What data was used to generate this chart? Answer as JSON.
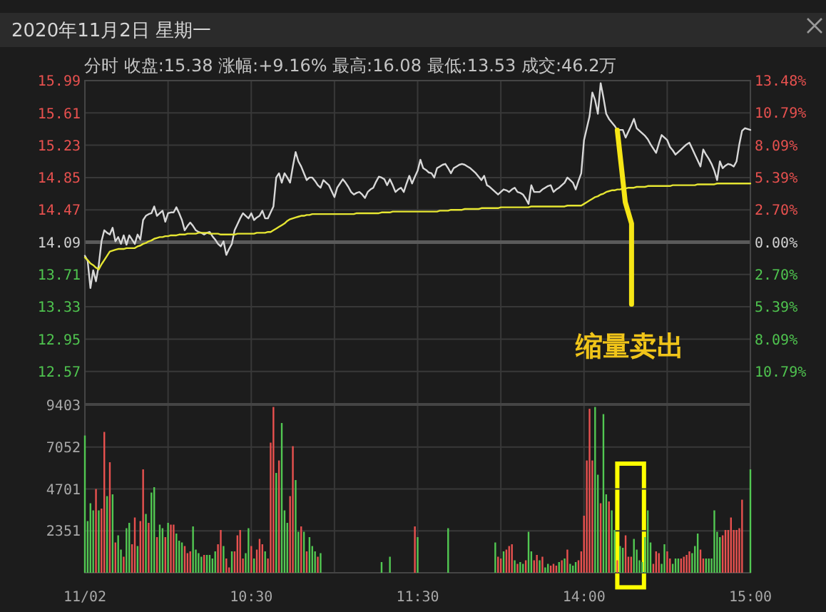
{
  "chart_data": [
    {
      "type": "line",
      "title": "2020年11月2日 星期一",
      "subtitle": "分时 收盘:15.38 涨幅:+9.16% 最高:16.08 最低:13.53 成交:46.2万",
      "categories": [
        null,
        null,
        null,
        null,
        null,
        null,
        null,
        null,
        null,
        null,
        null,
        null,
        null,
        null,
        null,
        null,
        null,
        null,
        null,
        null,
        null,
        null,
        null,
        null,
        null,
        null,
        null,
        null,
        null,
        null,
        null,
        null,
        null,
        null,
        null,
        null,
        null,
        null,
        null,
        null,
        null,
        null,
        null,
        null,
        null,
        null,
        null,
        null,
        null,
        null,
        null,
        null,
        null,
        null,
        null,
        null,
        null,
        null,
        null,
        null,
        null,
        null,
        null,
        null,
        null,
        null,
        null,
        null,
        null,
        null,
        null,
        null,
        null,
        null,
        null,
        null,
        null,
        null,
        null,
        null,
        null,
        null,
        null,
        null,
        null,
        null,
        null,
        null,
        null,
        null,
        null,
        null,
        null,
        null,
        null,
        null,
        null,
        null,
        null,
        null,
        null,
        null,
        null,
        null,
        null,
        null,
        null,
        null,
        null,
        null,
        null,
        null,
        null,
        null,
        null,
        null,
        null,
        null,
        null,
        null,
        null,
        null,
        null,
        null,
        null,
        null,
        null,
        null,
        null,
        null,
        null,
        null,
        null,
        null,
        null,
        null,
        null,
        null,
        null,
        null,
        null,
        null,
        null,
        null,
        null,
        null,
        null,
        null,
        null,
        null,
        null,
        null,
        null,
        null,
        null,
        null,
        null,
        null,
        null,
        null,
        null,
        null,
        null,
        null,
        null,
        null,
        null,
        null,
        null,
        null,
        null,
        null,
        null,
        null,
        null,
        null,
        null,
        null,
        null,
        null,
        null,
        null,
        null,
        null,
        null,
        null,
        null,
        null,
        null,
        null,
        null,
        null,
        null,
        null,
        null,
        null,
        null,
        null,
        null,
        null,
        null,
        null,
        null,
        null,
        null,
        null,
        null,
        null,
        null,
        null,
        null,
        null,
        null,
        null,
        null,
        null,
        null,
        null,
        null,
        null,
        null,
        null,
        null,
        null,
        null,
        null,
        null,
        null,
        null,
        null,
        null,
        null,
        null,
        null,
        null,
        null,
        null,
        null,
        null,
        null,
        null
      ],
      "ylim": [
        12.19,
        15.99
      ],
      "yticks": [
        15.99,
        15.61,
        15.23,
        14.85,
        14.47,
        14.09,
        13.71,
        13.33,
        12.95,
        12.57
      ],
      "y2lim": [
        -13.48,
        13.48
      ],
      "y2ticks": [
        {
          "value": 13.48,
          "label": "13.48%"
        },
        {
          "value": 10.79,
          "label": "10.79%"
        },
        {
          "value": 8.09,
          "label": "8.09%"
        },
        {
          "value": 5.39,
          "label": "5.39%"
        },
        {
          "value": 2.7,
          "label": "2.70%"
        },
        {
          "value": 0,
          "label": "0.00%"
        },
        {
          "value": -2.7,
          "label": "2.70%"
        },
        {
          "value": -5.39,
          "label": "5.39%"
        },
        {
          "value": -8.09,
          "label": "8.09%"
        },
        {
          "value": -10.79,
          "label": "10.79%"
        }
      ],
      "grid": true,
      "ref_lines": [
        {
          "axis": "y",
          "value": 14.09,
          "color": "#5a5a5a"
        }
      ],
      "annotations": [
        "缩量卖出"
      ],
      "series": [
        {
          "color": "#d8d8d8",
          "values": [
            13.93,
            13.87,
            13.55,
            13.76,
            13.63,
            13.82,
            14.1,
            14.23,
            14.2,
            14.18,
            14.26,
            14.1,
            14.15,
            14.07,
            14.17,
            14.06,
            14.17,
            14.12,
            14.07,
            14.18,
            14.12,
            14.35,
            14.4,
            14.42,
            14.43,
            14.51,
            14.4,
            14.43,
            14.46,
            14.33,
            14.43,
            14.44,
            14.44,
            14.5,
            14.43,
            14.35,
            14.23,
            14.28,
            14.32,
            14.28,
            14.23,
            14.21,
            14.2,
            14.18,
            14.2,
            14.21,
            14.16,
            14.12,
            14.07,
            14.04,
            14.1,
            13.94,
            14.01,
            14.07,
            14.23,
            14.3,
            14.37,
            14.43,
            14.4,
            14.37,
            14.43,
            14.35,
            14.38,
            14.4,
            14.46,
            14.37,
            14.37,
            14.44,
            14.51,
            14.85,
            14.9,
            14.79,
            14.9,
            14.85,
            14.79,
            14.98,
            15.15,
            15.04,
            14.98,
            14.9,
            14.82,
            14.85,
            14.85,
            14.81,
            14.76,
            14.73,
            14.82,
            14.79,
            14.76,
            14.69,
            14.62,
            14.73,
            14.78,
            14.83,
            14.79,
            14.74,
            14.68,
            14.65,
            14.67,
            14.68,
            14.65,
            14.61,
            14.68,
            14.71,
            14.73,
            14.8,
            14.86,
            14.85,
            14.83,
            14.76,
            14.83,
            14.76,
            14.68,
            14.71,
            14.73,
            14.68,
            14.78,
            14.87,
            14.78,
            14.86,
            14.93,
            15.06,
            14.96,
            14.94,
            14.91,
            14.9,
            14.85,
            14.96,
            14.98,
            15.0,
            15.01,
            14.96,
            14.9,
            14.96,
            14.98,
            15.0,
            15.01,
            15.0,
            14.98,
            14.96,
            14.93,
            14.9,
            14.86,
            14.82,
            14.87,
            14.76,
            14.74,
            14.71,
            14.68,
            14.65,
            14.68,
            14.71,
            14.7,
            14.68,
            14.71,
            14.73,
            14.68,
            14.67,
            14.65,
            14.6,
            14.54,
            14.76,
            14.68,
            14.68,
            14.68,
            14.71,
            14.73,
            14.75,
            14.76,
            14.68,
            14.71,
            14.73,
            14.76,
            14.79,
            14.85,
            14.82,
            14.79,
            14.71,
            14.81,
            14.9,
            15.29,
            15.43,
            15.57,
            15.85,
            15.76,
            15.6,
            15.96,
            15.79,
            15.6,
            15.54,
            15.5,
            15.46,
            15.41,
            15.41,
            15.41,
            15.32,
            15.39,
            15.46,
            15.54,
            15.43,
            15.4,
            15.37,
            15.34,
            15.3,
            15.24,
            15.19,
            15.14,
            15.25,
            15.35,
            15.32,
            15.29,
            15.21,
            15.17,
            15.12,
            15.15,
            15.18,
            15.21,
            15.24,
            15.26,
            15.19,
            15.12,
            15.05,
            14.98,
            15.18,
            15.12,
            15.07,
            15.01,
            14.93,
            14.82,
            15.04,
            14.96,
            14.99,
            15.01,
            15.0,
            14.98,
            15.04,
            15.24,
            15.4,
            15.43,
            15.42,
            15.41
          ]
        },
        {
          "color": "#e6e632",
          "values": [
            13.91,
            13.88,
            13.84,
            13.82,
            13.79,
            13.77,
            13.83,
            13.88,
            13.93,
            13.98,
            13.99,
            14.0,
            14.01,
            14.01,
            14.01,
            14.02,
            14.02,
            14.02,
            14.02,
            14.04,
            14.05,
            14.07,
            14.08,
            14.1,
            14.11,
            14.13,
            14.14,
            14.15,
            14.15,
            14.16,
            14.16,
            14.17,
            14.17,
            14.17,
            14.18,
            14.18,
            14.18,
            14.19,
            14.19,
            14.19,
            14.19,
            14.2,
            14.2,
            14.2,
            14.2,
            14.19,
            14.19,
            14.19,
            14.19,
            14.18,
            14.18,
            14.18,
            14.18,
            14.18,
            14.18,
            14.19,
            14.19,
            14.19,
            14.19,
            14.19,
            14.19,
            14.19,
            14.2,
            14.2,
            14.2,
            14.2,
            14.21,
            14.21,
            14.23,
            14.25,
            14.27,
            14.29,
            14.31,
            14.34,
            14.36,
            14.37,
            14.38,
            14.39,
            14.4,
            14.4,
            14.41,
            14.41,
            14.42,
            14.42,
            14.42,
            14.42,
            14.42,
            14.42,
            14.42,
            14.42,
            14.42,
            14.42,
            14.42,
            14.42,
            14.42,
            14.42,
            14.42,
            14.42,
            14.43,
            14.43,
            14.43,
            14.43,
            14.43,
            14.43,
            14.43,
            14.43,
            14.43,
            14.44,
            14.44,
            14.44,
            14.44,
            14.45,
            14.45,
            14.45,
            14.45,
            14.45,
            14.45,
            14.45,
            14.45,
            14.45,
            14.45,
            14.45,
            14.45,
            14.45,
            14.45,
            14.45,
            14.45,
            14.45,
            14.46,
            14.46,
            14.46,
            14.46,
            14.47,
            14.47,
            14.47,
            14.47,
            14.47,
            14.48,
            14.48,
            14.48,
            14.48,
            14.48,
            14.48,
            14.49,
            14.49,
            14.49,
            14.49,
            14.49,
            14.49,
            14.49,
            14.5,
            14.5,
            14.5,
            14.5,
            14.5,
            14.5,
            14.5,
            14.5,
            14.5,
            14.5,
            14.5,
            14.51,
            14.51,
            14.51,
            14.51,
            14.51,
            14.51,
            14.51,
            14.51,
            14.51,
            14.51,
            14.51,
            14.51,
            14.51,
            14.52,
            14.52,
            14.52,
            14.52,
            14.52,
            14.52,
            14.54,
            14.56,
            14.58,
            14.6,
            14.62,
            14.63,
            14.65,
            14.66,
            14.68,
            14.69,
            14.7,
            14.7,
            14.71,
            14.71,
            14.72,
            14.72,
            14.73,
            14.73,
            14.73,
            14.74,
            14.74,
            14.74,
            14.74,
            14.75,
            14.75,
            14.75,
            14.75,
            14.75,
            14.75,
            14.75,
            14.75,
            14.75,
            14.76,
            14.76,
            14.76,
            14.76,
            14.76,
            14.76,
            14.76,
            14.76,
            14.76,
            14.77,
            14.77,
            14.77,
            14.77,
            14.77,
            14.77,
            14.77,
            14.78,
            14.78,
            14.78,
            14.78,
            14.78,
            14.78,
            14.78,
            14.78,
            14.78,
            14.78,
            14.78,
            14.78,
            14.78
          ]
        }
      ]
    },
    {
      "type": "bar",
      "categories": [
        "11/02",
        null,
        null,
        null,
        null,
        null,
        null,
        null,
        null,
        null,
        null,
        null,
        null,
        null,
        null,
        null,
        null,
        null,
        null,
        null,
        null,
        null,
        null,
        null,
        null,
        null,
        null,
        null,
        null,
        null,
        null,
        null,
        null,
        null,
        null,
        null,
        null,
        null,
        null,
        null,
        null,
        null,
        null,
        null,
        null,
        null,
        null,
        null,
        null,
        null,
        null,
        null,
        null,
        null,
        null,
        null,
        null,
        null,
        null,
        null,
        "10:30",
        null,
        null,
        null,
        null,
        null,
        null,
        null,
        null,
        null,
        null,
        null,
        null,
        null,
        null,
        null,
        null,
        null,
        null,
        null,
        null,
        null,
        null,
        null,
        null,
        null,
        null,
        null,
        null,
        null,
        null,
        null,
        null,
        null,
        null,
        null,
        null,
        null,
        null,
        null,
        null,
        null,
        null,
        null,
        null,
        null,
        null,
        null,
        null,
        null,
        null,
        null,
        null,
        null,
        null,
        null,
        null,
        null,
        null,
        null,
        "11:30",
        null,
        null,
        null,
        null,
        null,
        null,
        null,
        null,
        null,
        null,
        null,
        null,
        null,
        null,
        null,
        null,
        null,
        null,
        null,
        null,
        null,
        null,
        null,
        null,
        null,
        null,
        null,
        null,
        null,
        null,
        null,
        null,
        null,
        null,
        null,
        null,
        null,
        null,
        null,
        null,
        null,
        null,
        null,
        null,
        null,
        null,
        null,
        null,
        null,
        null,
        null,
        null,
        null,
        null,
        null,
        null,
        null,
        null,
        null,
        "14:00",
        null,
        null,
        null,
        null,
        null,
        null,
        null,
        null,
        null,
        null,
        null,
        null,
        null,
        null,
        null,
        null,
        null,
        null,
        null,
        null,
        null,
        null,
        null,
        null,
        null,
        null,
        null,
        null,
        null,
        null,
        null,
        null,
        null,
        null,
        null,
        null,
        null,
        null,
        null,
        null,
        null,
        null,
        null,
        null,
        null,
        null,
        null,
        null,
        null,
        null,
        null,
        null,
        null,
        null,
        null,
        null,
        null,
        null,
        null,
        "15:00"
      ],
      "ylim": [
        0,
        9403
      ],
      "yticks": [
        2351,
        4701,
        7052,
        9403
      ],
      "grid": true,
      "values": [
        7700,
        2900,
        3900,
        3500,
        4700,
        3500,
        3600,
        7900,
        4300,
        6200,
        4400,
        1700,
        2100,
        1300,
        900,
        2500,
        2800,
        1600,
        3100,
        1500,
        2900,
        5800,
        3300,
        2800,
        4500,
        4800,
        2000,
        2700,
        2500,
        2000,
        2800,
        2700,
        2700,
        2200,
        1800,
        1700,
        1500,
        1100,
        1200,
        2600,
        1300,
        1100,
        900,
        1000,
        1000,
        1000,
        800,
        1200,
        1600,
        2400,
        1500,
        800,
        300,
        1200,
        1200,
        2100,
        2400,
        800,
        1100,
        2500,
        1500,
        800,
        1300,
        1900,
        1600,
        1200,
        800,
        7300,
        9300,
        5600,
        6300,
        8400,
        3500,
        2800,
        4300,
        7100,
        5200,
        2300,
        2600,
        2300,
        1200,
        2000,
        1500,
        1200,
        900,
        1100,
        null,
        null,
        null,
        null,
        null,
        null,
        null,
        null,
        null,
        null,
        null,
        null,
        null,
        null,
        null,
        null,
        null,
        null,
        null,
        null,
        null,
        600,
        null,
        null,
        900,
        null,
        null,
        null,
        null,
        null,
        null,
        null,
        null,
        2600,
        2000,
        null,
        null,
        null,
        null,
        null,
        null,
        null,
        null,
        null,
        null,
        2500,
        null,
        null,
        null,
        null,
        null,
        null,
        null,
        null,
        null,
        null,
        null,
        null,
        null,
        null,
        null,
        null,
        1700,
        900,
        800,
        1200,
        1300,
        1500,
        1600,
        700,
        500,
        600,
        500,
        700,
        2300,
        1200,
        700,
        1000,
        700,
        900,
        300,
        500,
        400,
        500,
        400,
        600,
        700,
        800,
        1300,
        500,
        400,
        600,
        700,
        1200,
        3200,
        6300,
        9200,
        6300,
        9300,
        5500,
        3900,
        8900,
        4400,
        4000,
        3500,
        2400,
        700,
        1500,
        1400,
        2100,
        900,
        900,
        1900,
        1300,
        700,
        600,
        2000,
        3500,
        1700,
        500,
        1200,
        1100,
        500,
        1600,
        1200,
        800,
        500,
        800,
        800,
        800,
        900,
        1000,
        1200,
        1100,
        1500,
        2200,
        1300,
        800,
        800,
        800,
        800,
        3500,
        2300,
        2000,
        2100,
        2400,
        2400,
        3100,
        2400,
        2400,
        2500,
        4100,
        null,
        null,
        5800
      ],
      "colors": [
        "#52c852",
        "#52c852",
        "#52c852",
        "#52c852",
        "#e8514f",
        "#52c852",
        "#e8514f",
        "#e8514f",
        "#52c852",
        "#e8514f",
        "#52c852",
        "#e8514f",
        "#52c852",
        "#52c852",
        "#e8514f",
        "#52c852",
        "#52c852",
        "#e8514f",
        "#e8514f",
        "#52c852",
        "#e8514f",
        "#e8514f",
        "#52c852",
        "#e8514f",
        "#52c852",
        "#52c852",
        "#e8514f",
        "#52c852",
        "#52c852",
        "#e8514f",
        "#52c852",
        "#e8514f",
        "#e8514f",
        "#52c852",
        "#52c852",
        "#52c852",
        "#e8514f",
        "#e8514f",
        "#e8514f",
        "#52c852",
        "#52c852",
        "#52c852",
        "#52c852",
        "#e8514f",
        "#52c852",
        "#52c852",
        "#52c852",
        "#52c852",
        "#e8514f",
        "#e8514f",
        "#52c852",
        "#e8514f",
        "#e8514f",
        "#52c852",
        "#e8514f",
        "#e8514f",
        "#e8514f",
        "#e8514f",
        "#52c852",
        "#52c852",
        "#e8514f",
        "#52c852",
        "#e8514f",
        "#e8514f",
        "#e8514f",
        "#52c852",
        "#e8514f",
        "#e8514f",
        "#e8514f",
        "#52c852",
        "#e8514f",
        "#52c852",
        "#52c852",
        "#52c852",
        "#e8514f",
        "#e8514f",
        "#52c852",
        "#52c852",
        "#e8514f",
        "#52c852",
        "#e8514f",
        "#52c852",
        "#52c852",
        "#52c852",
        "#e8514f",
        "#52c852",
        null,
        null,
        null,
        null,
        null,
        null,
        null,
        null,
        null,
        null,
        null,
        null,
        null,
        null,
        null,
        null,
        null,
        null,
        null,
        null,
        null,
        "#52c852",
        null,
        null,
        "#52c852",
        null,
        null,
        null,
        null,
        null,
        null,
        null,
        null,
        "#e8514f",
        "#52c852",
        null,
        null,
        null,
        null,
        null,
        null,
        null,
        null,
        null,
        null,
        "#52c852",
        null,
        null,
        null,
        null,
        null,
        null,
        null,
        null,
        null,
        null,
        null,
        null,
        null,
        null,
        null,
        null,
        "#52c852",
        "#e8514f",
        "#e8514f",
        "#52c852",
        "#e8514f",
        "#e8514f",
        "#e8514f",
        "#52c852",
        "#e8514f",
        "#52c852",
        "#52c852",
        "#e8514f",
        "#52c852",
        "#52c852",
        "#e8514f",
        "#e8514f",
        "#52c852",
        "#e8514f",
        "#52c852",
        "#52c852",
        "#e8514f",
        "#e8514f",
        "#e8514f",
        "#52c852",
        "#e8514f",
        "#52c852",
        "#e8514f",
        "#52c852",
        "#52c852",
        "#52c852",
        "#e8514f",
        "#e8514f",
        "#e8514f",
        "#e8514f",
        "#e8514f",
        "#e8514f",
        "#52c852",
        "#52c852",
        "#e8514f",
        "#52c852",
        "#52c852",
        "#e8514f",
        "#52c852",
        "#52c852",
        "#e8514f",
        "#52c852",
        "#52c852",
        "#e8514f",
        "#e8514f",
        "#e8514f",
        "#52c852",
        "#52c852",
        "#52c852",
        "#52c852",
        "#52c852",
        "#52c852",
        "#52c852",
        "#e8514f",
        "#e8514f",
        "#e8514f",
        "#52c852",
        "#52c852",
        "#e8514f",
        "#e8514f",
        "#52c852",
        "#52c852",
        "#52c852",
        "#e8514f",
        "#e8514f",
        "#e8514f",
        "#e8514f",
        "#52c852",
        "#52c852",
        "#52c852",
        "#e8514f",
        "#e8514f",
        "#52c852",
        "#52c852",
        "#52c852",
        "#52c852",
        "#52c852",
        "#52c852",
        "#e8514f",
        "#e8514f",
        "#e8514f",
        "#e8514f",
        "#e8514f",
        "#e8514f",
        "#e8514f",
        "#e8514f",
        null,
        null,
        "#52c852"
      ]
    }
  ]
}
